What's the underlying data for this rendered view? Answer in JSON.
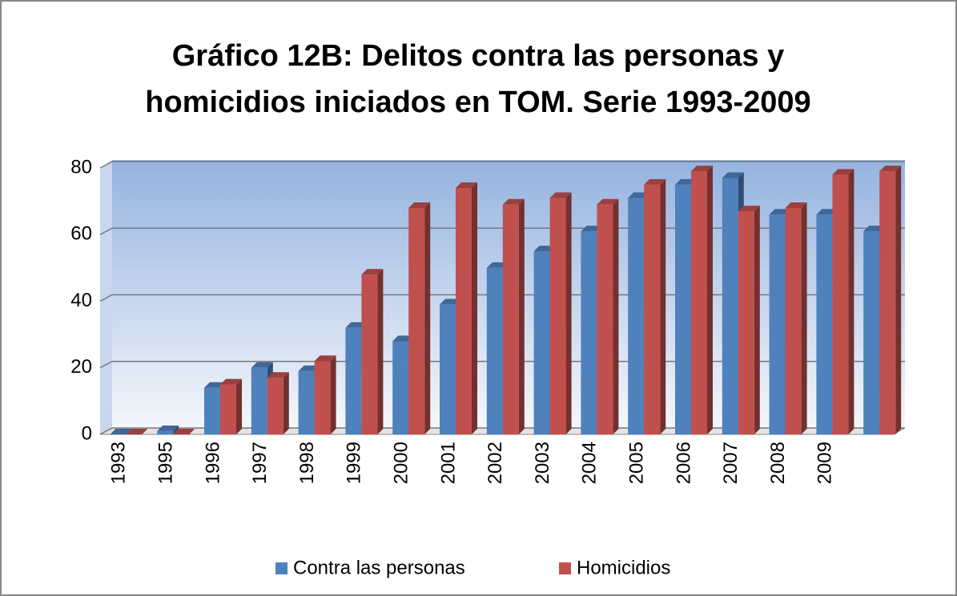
{
  "chart_data": {
    "type": "bar3d",
    "title": [
      "Gráfico 12B: Delitos contra las personas y",
      "homicidios iniciados en TOM. Serie 1993-2009"
    ],
    "categories": [
      "1993",
      "1995",
      "1996",
      "1997",
      "1998",
      "1999",
      "2000",
      "2001",
      "2002",
      "2003",
      "2004",
      "2005",
      "2006",
      "2007",
      "2008",
      "2009",
      null
    ],
    "series": [
      {
        "name": "Contra las personas",
        "color": "#4f81bd",
        "values": [
          0,
          1,
          14,
          20,
          19,
          32,
          28,
          39,
          50,
          55,
          61,
          71,
          75,
          77,
          66,
          66,
          61
        ]
      },
      {
        "name": "Homicidios",
        "color": "#c0504d",
        "values": [
          0,
          0,
          15,
          17,
          22,
          48,
          68,
          74,
          69,
          71,
          69,
          75,
          79,
          67,
          68,
          78,
          79
        ]
      }
    ],
    "ylim": [
      0,
      80
    ],
    "yticks": [
      0,
      20,
      40,
      60,
      80
    ],
    "grid": true,
    "legend": "bottom"
  }
}
